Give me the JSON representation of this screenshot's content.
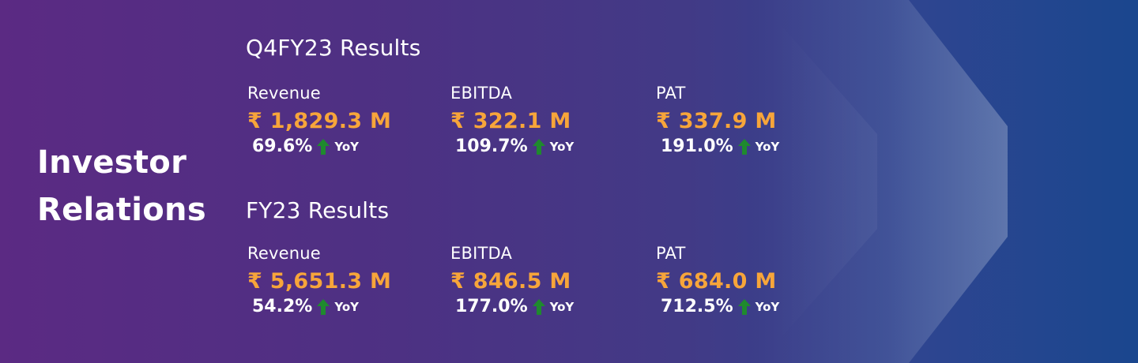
{
  "header": {
    "title_line1": "Investor",
    "title_line2": "Relations"
  },
  "q4": {
    "title": "Q4FY23 Results",
    "revenue": {
      "label": "Revenue",
      "value": "₹ 1,829.3 M",
      "growth": "69.6%",
      "yoy": "YoY"
    },
    "ebitda": {
      "label": "EBITDA",
      "value": "₹ 322.1 M",
      "growth": "109.7%",
      "yoy": "YoY"
    },
    "pat": {
      "label": "PAT",
      "value": "₹ 337.9 M",
      "growth": "191.0%",
      "yoy": "YoY"
    }
  },
  "fy": {
    "title": "FY23 Results",
    "revenue": {
      "label": "Revenue",
      "value": "₹ 5,651.3 M",
      "growth": "54.2%",
      "yoy": "YoY"
    },
    "ebitda": {
      "label": "EBITDA",
      "value": "₹ 846.5 M",
      "growth": "177.0%",
      "yoy": "YoY"
    },
    "pat": {
      "label": "PAT",
      "value": "₹ 684.0 M",
      "growth": "712.5%",
      "yoy": "YoY"
    }
  },
  "icons": {
    "growth": "arrow-up-icon"
  },
  "colors": {
    "value": "#f7a53a",
    "arrow": "#1f8a2e",
    "text": "#ffffff",
    "bg_left": "#5b2a83",
    "bg_right": "#1a468e"
  }
}
